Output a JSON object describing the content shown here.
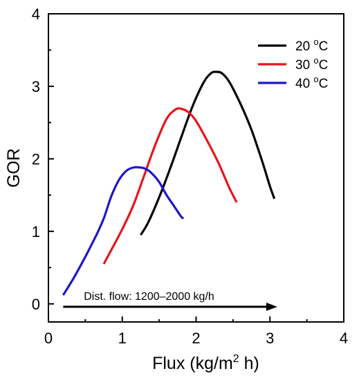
{
  "chart_data": {
    "type": "line",
    "title": "",
    "xlabel": "Flux (kg/m",
    "xlabel_sup": "2",
    "xlabel_tail": " h)",
    "ylabel": "GOR",
    "xlim": [
      0,
      4
    ],
    "ylim": [
      -0.25,
      4
    ],
    "xticks": [
      0,
      1,
      2,
      3,
      4
    ],
    "yticks": [
      0,
      1,
      2,
      3,
      4
    ],
    "xtick_labels": [
      "0",
      "1",
      "2",
      "3",
      "4"
    ],
    "ytick_labels": [
      "0",
      "1",
      "2",
      "3",
      "4"
    ],
    "grid": false,
    "legend_position": "top-right",
    "series": [
      {
        "name": "20 °C",
        "label_main": "20 ",
        "label_sup": "o",
        "label_tail": "C",
        "color": "#000000",
        "x": [
          1.25,
          1.35,
          1.5,
          1.65,
          1.8,
          1.95,
          2.1,
          2.2,
          2.27,
          2.35,
          2.45,
          2.6,
          2.75,
          2.9,
          3.0,
          3.06
        ],
        "y": [
          0.95,
          1.12,
          1.47,
          1.87,
          2.3,
          2.72,
          3.05,
          3.18,
          3.2,
          3.18,
          3.06,
          2.76,
          2.4,
          1.95,
          1.62,
          1.45
        ]
      },
      {
        "name": "30 °C",
        "label_main": "30 ",
        "label_sup": "o",
        "label_tail": "C",
        "color": "#e8141b",
        "x": [
          0.75,
          0.85,
          1.0,
          1.15,
          1.3,
          1.45,
          1.6,
          1.72,
          1.8,
          1.9,
          2.0,
          2.15,
          2.3,
          2.45,
          2.55
        ],
        "y": [
          0.55,
          0.74,
          1.03,
          1.36,
          1.78,
          2.2,
          2.55,
          2.68,
          2.69,
          2.64,
          2.52,
          2.25,
          1.95,
          1.6,
          1.4
        ]
      },
      {
        "name": "40 °C",
        "label_main": "40 ",
        "label_sup": "o",
        "label_tail": "C",
        "color": "#1f16c8",
        "x": [
          0.2,
          0.35,
          0.5,
          0.65,
          0.75,
          0.85,
          0.95,
          1.05,
          1.15,
          1.25,
          1.32,
          1.4,
          1.5,
          1.6,
          1.7,
          1.8,
          1.83
        ],
        "y": [
          0.12,
          0.37,
          0.65,
          0.95,
          1.18,
          1.48,
          1.7,
          1.83,
          1.88,
          1.88,
          1.86,
          1.8,
          1.68,
          1.5,
          1.35,
          1.2,
          1.18
        ]
      }
    ],
    "annotation": {
      "text": "Dist. flow: 1200–2000 kg/h",
      "arrow_from": [
        0.2,
        -0.04
      ],
      "arrow_to": [
        3.1,
        -0.04
      ]
    }
  }
}
